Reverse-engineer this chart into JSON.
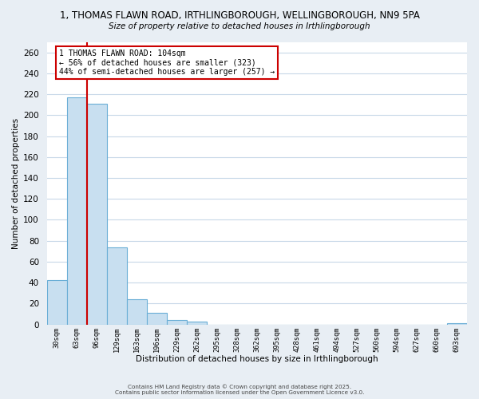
{
  "title_line1": "1, THOMAS FLAWN ROAD, IRTHLINGBOROUGH, WELLINGBOROUGH, NN9 5PA",
  "title_line2": "Size of property relative to detached houses in Irthlingborough",
  "xlabel": "Distribution of detached houses by size in Irthlingborough",
  "ylabel": "Number of detached properties",
  "bar_labels": [
    "30sqm",
    "63sqm",
    "96sqm",
    "129sqm",
    "163sqm",
    "196sqm",
    "229sqm",
    "262sqm",
    "295sqm",
    "328sqm",
    "362sqm",
    "395sqm",
    "428sqm",
    "461sqm",
    "494sqm",
    "527sqm",
    "560sqm",
    "594sqm",
    "627sqm",
    "660sqm",
    "693sqm"
  ],
  "bar_values": [
    42,
    217,
    211,
    74,
    24,
    11,
    4,
    3,
    0,
    0,
    0,
    0,
    0,
    0,
    0,
    0,
    0,
    0,
    0,
    0,
    1
  ],
  "bar_color": "#c8dff0",
  "bar_edge_color": "#6aaed6",
  "ylim": [
    0,
    270
  ],
  "yticks": [
    0,
    20,
    40,
    60,
    80,
    100,
    120,
    140,
    160,
    180,
    200,
    220,
    240,
    260
  ],
  "vline_x": 1.5,
  "vline_color": "#cc0000",
  "annotation_text": "1 THOMAS FLAWN ROAD: 104sqm\n← 56% of detached houses are smaller (323)\n44% of semi-detached houses are larger (257) →",
  "annotation_box_color": "#ffffff",
  "annotation_box_edge": "#cc0000",
  "footer_line1": "Contains HM Land Registry data © Crown copyright and database right 2025.",
  "footer_line2": "Contains public sector information licensed under the Open Government Licence v3.0.",
  "bg_color": "#e8eef4",
  "plot_bg_color": "#ffffff",
  "grid_color": "#c8d8e8"
}
